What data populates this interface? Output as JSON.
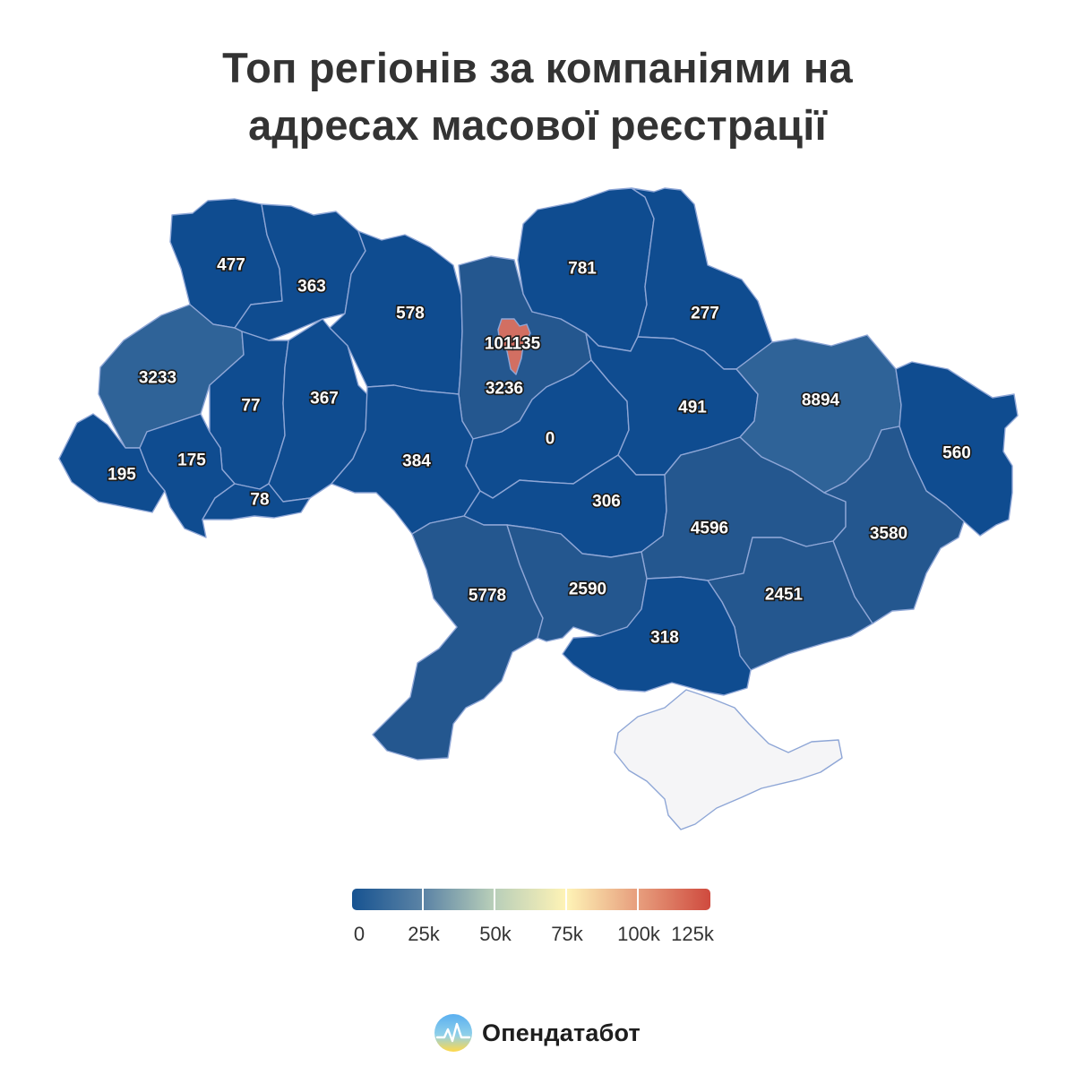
{
  "title": {
    "line1": "Топ регіонів за компаніями на",
    "line2": "адресах масової реєстрації"
  },
  "map": {
    "colors": {
      "dark": "#0f4c90",
      "mid": "#24578f",
      "light": "#2f6398",
      "highlight": "#d26f62",
      "no_data": "#f5f5f7"
    },
    "regions": [
      {
        "id": "volyn",
        "value": "477"
      },
      {
        "id": "rivne",
        "value": "363"
      },
      {
        "id": "zhytomyr",
        "value": "578"
      },
      {
        "id": "kyiv-city",
        "value": "101135"
      },
      {
        "id": "kyiv-oblast",
        "value": "3236"
      },
      {
        "id": "chernihiv",
        "value": "781"
      },
      {
        "id": "sumy",
        "value": "277"
      },
      {
        "id": "lviv",
        "value": "3233"
      },
      {
        "id": "ternopil",
        "value": "77"
      },
      {
        "id": "khmelnytskyi",
        "value": "367"
      },
      {
        "id": "zakarpattia",
        "value": "195"
      },
      {
        "id": "ivano-frankivsk",
        "value": "175"
      },
      {
        "id": "chernivtsi",
        "value": "78"
      },
      {
        "id": "vinnytsia",
        "value": "384"
      },
      {
        "id": "cherkasy",
        "value": "0"
      },
      {
        "id": "poltava",
        "value": "491"
      },
      {
        "id": "kharkiv",
        "value": "8894"
      },
      {
        "id": "luhansk",
        "value": "560"
      },
      {
        "id": "kirovohrad",
        "value": "306"
      },
      {
        "id": "dnipropetrovsk",
        "value": "4596"
      },
      {
        "id": "donetsk",
        "value": "3580"
      },
      {
        "id": "odesa",
        "value": "5778"
      },
      {
        "id": "mykolaiv",
        "value": "2590"
      },
      {
        "id": "kherson",
        "value": "318"
      },
      {
        "id": "zaporizhzhia",
        "value": "2451"
      }
    ]
  },
  "legend": {
    "colors": [
      "#175391",
      "#5b83a5",
      "#b9cfb9",
      "#fef3b6",
      "#e79e7d",
      "#cf4a3e"
    ],
    "ticks": [
      "0",
      "25k",
      "50k",
      "75k",
      "100k",
      "125k"
    ]
  },
  "brand": {
    "name": "Опендатабот",
    "logo_icon": "opendatabot-logo-icon"
  }
}
